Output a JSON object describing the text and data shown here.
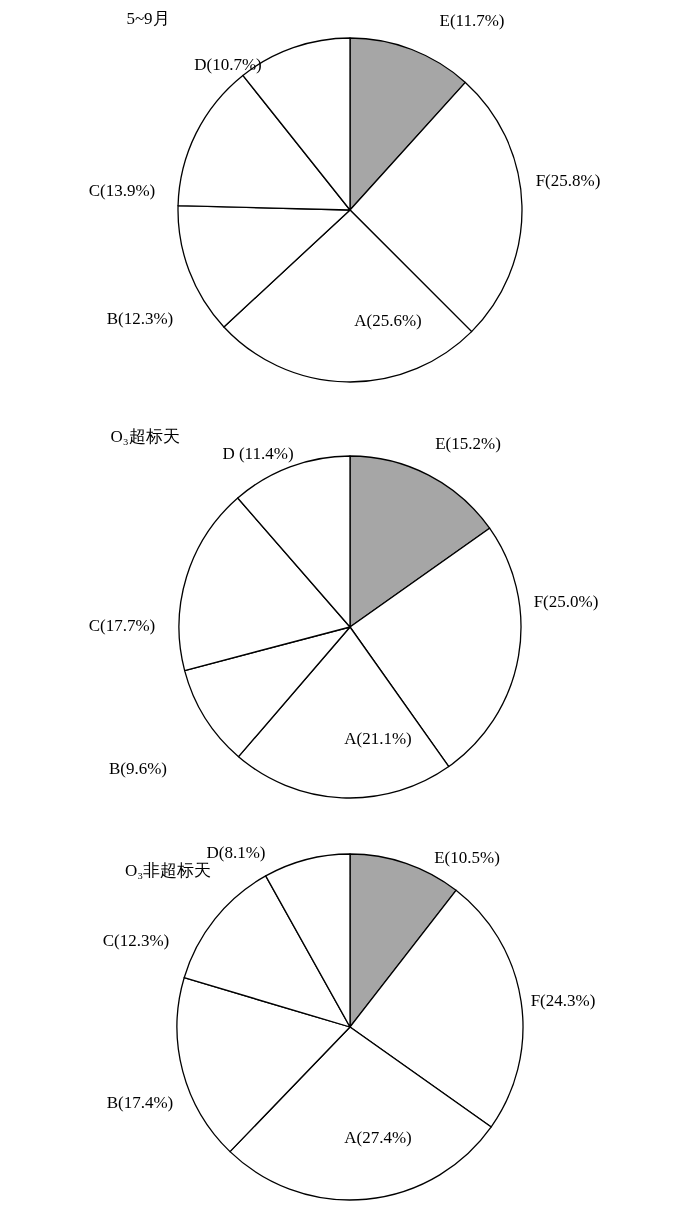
{
  "chart_data": [
    {
      "type": "pie",
      "title": "5~9月",
      "categories": [
        "E(11.7%)",
        "F(25.8%)",
        "A(25.6%)",
        "B(12.3%)",
        "C(13.9%)",
        "D(10.7%)"
      ],
      "values": [
        11.7,
        25.8,
        25.6,
        12.3,
        13.9,
        10.7
      ],
      "colors": [
        "#a6a6a6",
        "#ffffff",
        "#ffffff",
        "#ffffff",
        "#ffffff",
        "#ffffff"
      ]
    },
    {
      "type": "pie",
      "title": "O₃超标天",
      "categories": [
        "E(15.2%)",
        "F(25.0%)",
        "A(21.1%)",
        "B(9.6%)",
        "C(17.7%)",
        "D (11.4%)"
      ],
      "values": [
        15.2,
        25.0,
        21.1,
        9.6,
        17.7,
        11.4
      ],
      "colors": [
        "#a6a6a6",
        "#ffffff",
        "#ffffff",
        "#ffffff",
        "#ffffff",
        "#ffffff"
      ]
    },
    {
      "type": "pie",
      "title": "O₃非超标天",
      "categories": [
        "E(10.5%)",
        "F(24.3%)",
        "A(27.4%)",
        "B(17.4%)",
        "C(12.3%)",
        "D(8.1%)"
      ],
      "values": [
        10.5,
        24.3,
        27.4,
        17.4,
        12.3,
        8.1
      ],
      "colors": [
        "#a6a6a6",
        "#ffffff",
        "#ffffff",
        "#ffffff",
        "#ffffff",
        "#ffffff"
      ]
    }
  ]
}
